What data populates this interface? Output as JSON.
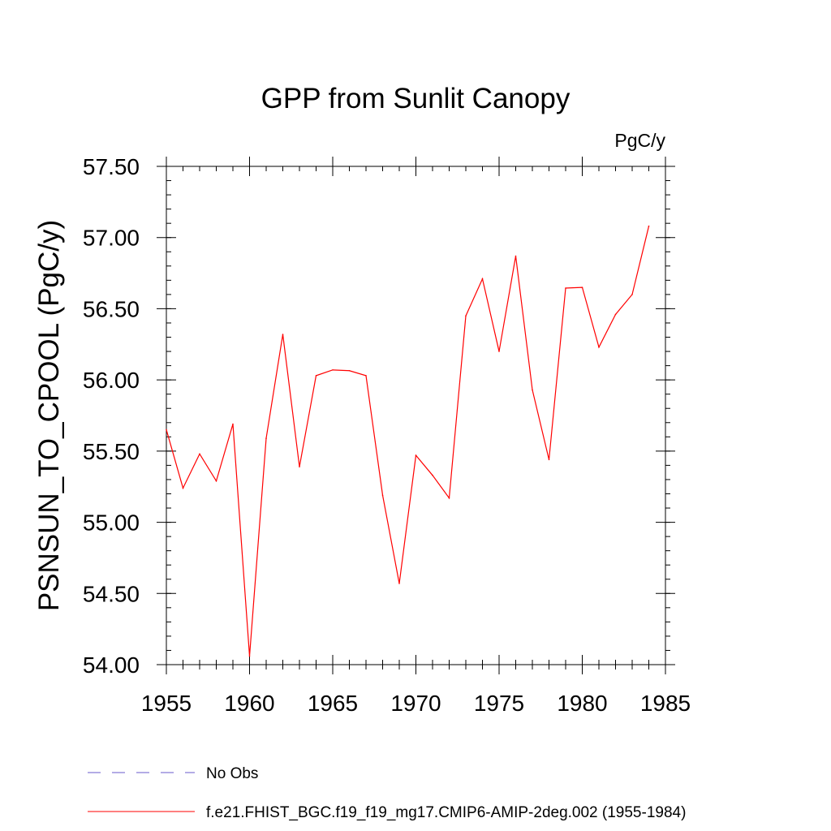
{
  "chart_data": {
    "type": "line",
    "title": "GPP from Sunlit Canopy",
    "units_label": "PgC/y",
    "ylabel": "PSNSUN_TO_CPOOL  (PgC/y)",
    "xlabel": "",
    "xlim": [
      1955,
      1985
    ],
    "ylim": [
      54.0,
      57.5
    ],
    "x_ticks": [
      1955,
      1960,
      1965,
      1970,
      1975,
      1980,
      1985
    ],
    "x_tick_labels": [
      "1955",
      "1960",
      "1965",
      "1970",
      "1975",
      "1980",
      "1985"
    ],
    "y_ticks": [
      54.0,
      54.5,
      55.0,
      55.5,
      56.0,
      56.5,
      57.0,
      57.5
    ],
    "y_tick_labels": [
      "54.00",
      "54.50",
      "55.00",
      "55.50",
      "56.00",
      "56.50",
      "57.00",
      "57.50"
    ],
    "x_minor_step": 1,
    "y_minor_step": 0.1,
    "grid": false,
    "series": [
      {
        "name": "f.e21.FHIST_BGC.f19_f19_mg17.CMIP6-AMIP-2deg.002 (1955-1984)",
        "color": "#ff0000",
        "dash": "solid",
        "x": [
          1955,
          1956,
          1957,
          1958,
          1959,
          1960,
          1961,
          1962,
          1963,
          1964,
          1965,
          1966,
          1967,
          1968,
          1969,
          1970,
          1971,
          1972,
          1973,
          1974,
          1975,
          1976,
          1977,
          1978,
          1979,
          1980,
          1981,
          1982,
          1983,
          1984
        ],
        "values": [
          55.65,
          55.24,
          55.48,
          55.29,
          55.69,
          54.06,
          55.59,
          56.32,
          55.39,
          56.03,
          56.07,
          56.065,
          56.03,
          55.19,
          54.57,
          55.47,
          55.33,
          55.17,
          56.45,
          56.71,
          56.2,
          56.87,
          55.93,
          55.44,
          56.645,
          56.65,
          56.23,
          56.46,
          56.6,
          57.08
        ]
      }
    ],
    "legend": {
      "placement": "bottom-left",
      "entries": [
        {
          "label": "No Obs",
          "color": "#6a5acd",
          "dash": "dashed"
        },
        {
          "label": "f.e21.FHIST_BGC.f19_f19_mg17.CMIP6-AMIP-2deg.002 (1955-1984)",
          "color": "#ff0000",
          "dash": "solid"
        }
      ]
    }
  }
}
